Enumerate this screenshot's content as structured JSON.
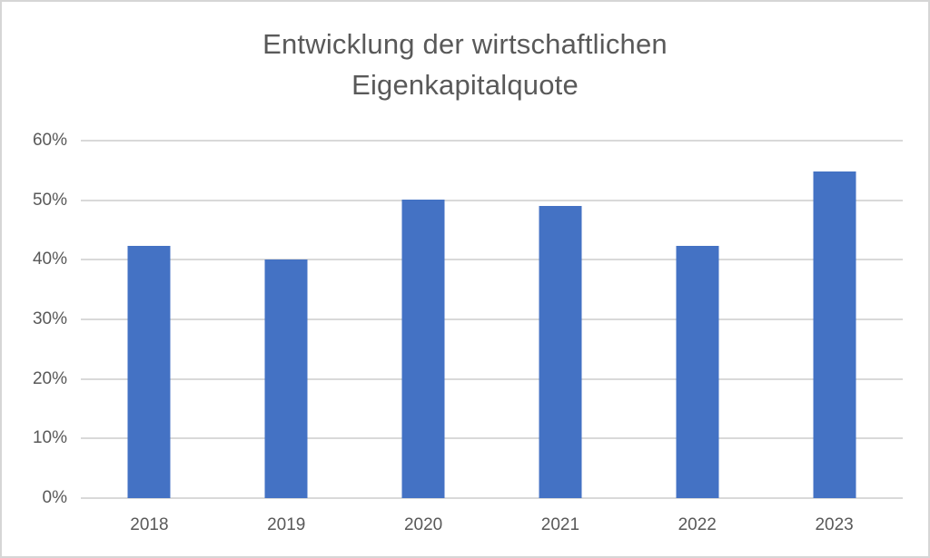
{
  "chart_data": {
    "type": "bar",
    "title": "Entwicklung der wirtschaftlichen Eigenkapitalquote",
    "title_lines": [
      "Entwicklung der wirtschaftlichen",
      "Eigenkapitalquote"
    ],
    "categories": [
      "2018",
      "2019",
      "2020",
      "2021",
      "2022",
      "2023"
    ],
    "values": [
      42.3,
      40.0,
      50.1,
      49.0,
      42.4,
      54.9
    ],
    "y_ticks": [
      "0%",
      "10%",
      "20%",
      "30%",
      "40%",
      "50%",
      "60%"
    ],
    "ylim": [
      0,
      60
    ],
    "xlabel": "",
    "ylabel": "",
    "grid": true,
    "legend": "none",
    "colors": {
      "bar": "#4472c4",
      "gridline": "#d9d9d9",
      "text": "#595959",
      "border": "#d6d6d6"
    }
  }
}
